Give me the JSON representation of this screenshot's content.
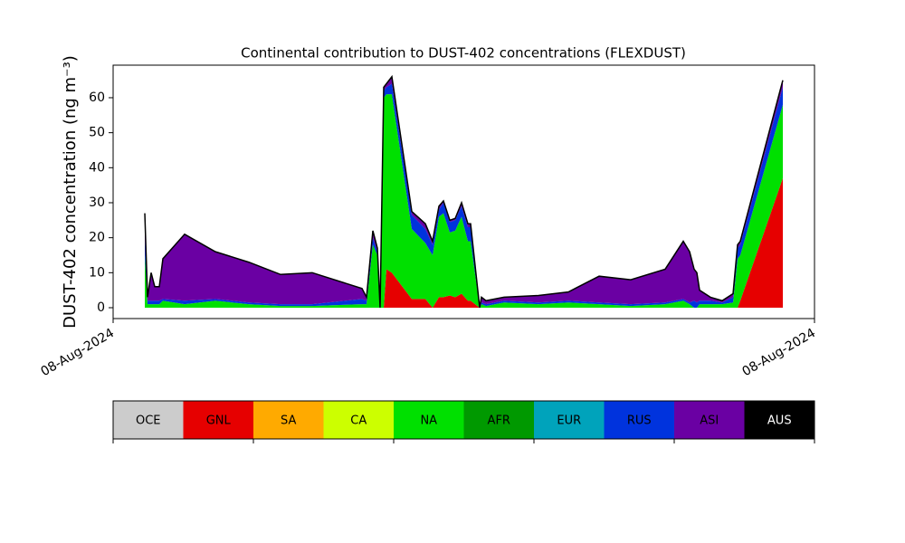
{
  "chart_data": {
    "type": "stacked_area",
    "title": "Continental contribution to DUST-402 concentrations (FLEXDUST)",
    "y_label": "DUST-402 concentration (ng m⁻³)",
    "xlim": [
      0,
      775
    ],
    "ylim": [
      -3.1,
      69.3
    ],
    "xticks": [
      {
        "value": 0,
        "label": "08-Aug-2024"
      },
      {
        "value": 775,
        "label": "08-Aug-2024"
      }
    ],
    "yticks": [
      0,
      10,
      20,
      30,
      40,
      50,
      60
    ],
    "grid": false,
    "x": [
      35,
      38,
      42,
      46,
      51,
      55,
      79,
      113,
      150,
      185,
      220,
      275,
      280,
      287,
      292,
      295,
      299,
      302,
      308,
      330,
      345,
      353,
      360,
      365,
      372,
      378,
      385,
      392,
      395,
      405,
      407,
      412,
      432,
      470,
      503,
      537,
      572,
      610,
      630,
      637,
      642,
      645,
      648,
      660,
      673,
      685,
      690,
      693,
      740
    ],
    "series": [
      {
        "name": "OCE",
        "color": "#cccccc",
        "values": [
          0,
          0,
          0,
          0,
          0,
          0,
          0,
          0,
          0,
          0,
          0,
          0,
          0,
          0,
          0,
          0,
          0,
          0,
          0,
          0,
          0,
          0,
          0,
          0,
          0,
          0,
          0,
          0,
          0,
          0,
          0,
          0,
          0,
          0,
          0,
          0,
          0,
          0,
          0,
          0,
          0,
          0,
          0,
          0,
          0,
          0,
          0,
          0,
          0
        ]
      },
      {
        "name": "GNL",
        "color": "#e60000",
        "values": [
          0,
          0,
          0,
          0,
          0,
          0,
          0,
          0,
          0,
          0,
          0,
          0,
          0,
          0,
          0,
          0,
          0,
          11,
          10,
          2.5,
          2.5,
          0,
          3,
          3,
          3.5,
          3,
          4,
          2,
          2,
          0,
          0,
          0,
          0,
          0,
          0,
          0,
          0,
          0,
          0,
          0,
          0,
          0,
          0,
          0,
          0,
          0,
          0,
          2,
          37
        ]
      },
      {
        "name": "SA",
        "color": "#ffaa00",
        "values": [
          0,
          0,
          0,
          0,
          0,
          0,
          0,
          0,
          0,
          0,
          0,
          0,
          0,
          0,
          0,
          0,
          0,
          0,
          0,
          0,
          0,
          0,
          0,
          0,
          0,
          0,
          0,
          0,
          0,
          0,
          0,
          0,
          0,
          0,
          0,
          0,
          0,
          0,
          0,
          0,
          0,
          0,
          0,
          0,
          0,
          0,
          0,
          0,
          0
        ]
      },
      {
        "name": "CA",
        "color": "#ccff00",
        "values": [
          0,
          0,
          0,
          0,
          0,
          0,
          0,
          0,
          0,
          0,
          0,
          0,
          0,
          0,
          0,
          0,
          0,
          0,
          0,
          0,
          0,
          0,
          0,
          0,
          0,
          0,
          0,
          0,
          0,
          0,
          0,
          0,
          0,
          0,
          0,
          0,
          0,
          0,
          0,
          0,
          0,
          0,
          0,
          0,
          0,
          0,
          0,
          0,
          0
        ]
      },
      {
        "name": "NA",
        "color": "#00e000",
        "values": [
          15,
          1,
          1,
          1,
          1,
          2,
          1,
          2,
          1,
          0.5,
          0.5,
          1,
          1,
          18,
          15,
          0,
          60,
          50,
          51,
          20,
          16,
          15,
          23,
          24,
          18,
          19,
          22,
          17,
          17,
          0,
          1,
          0.5,
          1.5,
          1,
          1.5,
          1,
          0.5,
          1,
          2,
          1,
          0,
          0,
          1,
          1,
          1,
          1.5,
          14,
          13,
          21
        ]
      },
      {
        "name": "AFR",
        "color": "#009900",
        "values": [
          0,
          0,
          0,
          0,
          0,
          0,
          0,
          0,
          0,
          0,
          0,
          0,
          0,
          0,
          0,
          0,
          0,
          0,
          0,
          0,
          0,
          0,
          0,
          0,
          0,
          0,
          0,
          0,
          0,
          0,
          0,
          0,
          0,
          0,
          0,
          0,
          0,
          0,
          0,
          0,
          0,
          0,
          0,
          0,
          0,
          0,
          0,
          0,
          0
        ]
      },
      {
        "name": "EUR",
        "color": "#00a3bb",
        "values": [
          0,
          0,
          0,
          0,
          0,
          0,
          0,
          0,
          0,
          0,
          0,
          0,
          0,
          0,
          0,
          0,
          0,
          0,
          0,
          0,
          0,
          0,
          0,
          0,
          0,
          0,
          0,
          0,
          0,
          0,
          0,
          0,
          0,
          0,
          0,
          0,
          0,
          0,
          0,
          0,
          0,
          0,
          0,
          0,
          0,
          0,
          0,
          0,
          0
        ]
      },
      {
        "name": "RUS",
        "color": "#0033dd",
        "values": [
          5,
          1,
          1,
          1,
          1,
          0.5,
          1,
          0.5,
          0.5,
          0.5,
          0.5,
          1.5,
          1,
          2,
          1,
          0,
          2,
          2,
          3,
          4,
          4,
          3,
          2,
          3,
          3,
          3,
          3,
          4,
          4,
          0,
          0.5,
          0.5,
          0.5,
          0.5,
          0.5,
          0.5,
          0.5,
          0.5,
          0.5,
          0.5,
          2,
          1.5,
          1,
          1,
          0.5,
          1.5,
          3,
          3,
          5
        ]
      },
      {
        "name": "ASI",
        "color": "#6a00a3",
        "values": [
          7,
          1,
          8,
          4,
          4,
          11.5,
          19,
          13.5,
          11.5,
          8.5,
          9,
          3,
          1,
          2,
          1,
          0,
          1,
          1,
          2,
          1,
          1.5,
          1,
          1,
          0.5,
          0.5,
          0.5,
          1,
          1,
          1,
          0,
          1.5,
          1,
          1,
          2,
          2.5,
          7.5,
          7,
          9.5,
          16.5,
          14.5,
          9,
          8.5,
          3,
          1,
          0.5,
          1,
          1,
          1,
          2
        ]
      },
      {
        "name": "AUS",
        "color": "#000000",
        "values": [
          0,
          0,
          0,
          0,
          0,
          0,
          0,
          0,
          0,
          0,
          0,
          0,
          0,
          0,
          0,
          0,
          0,
          0,
          0,
          0,
          0,
          0,
          0,
          0,
          0,
          0,
          0,
          0,
          0,
          0,
          0,
          0,
          0,
          0,
          0,
          0,
          0,
          0,
          0,
          0,
          0,
          0,
          0,
          0,
          0,
          0,
          0,
          0,
          0
        ]
      }
    ]
  }
}
